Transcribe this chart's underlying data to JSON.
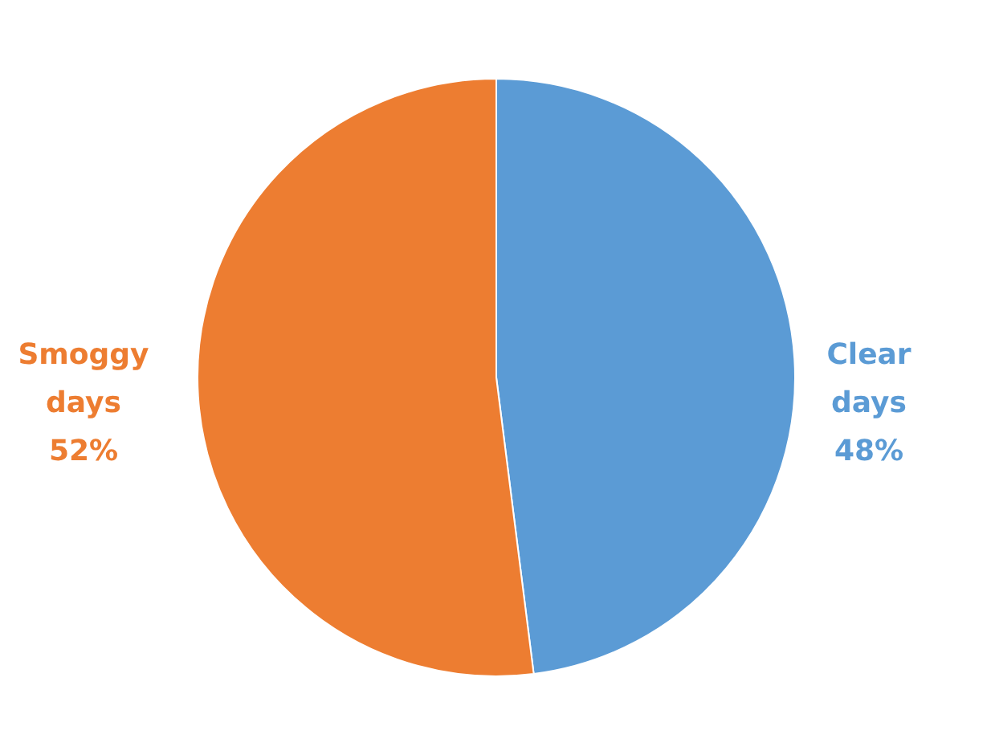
{
  "chart_data": {
    "type": "pie",
    "categories": [
      "Clear days",
      "Smoggy days"
    ],
    "values": [
      48,
      52
    ],
    "colors": [
      "#5b9bd5",
      "#ed7d31"
    ],
    "value_labels": [
      "48%",
      "52%"
    ],
    "legend": false
  }
}
